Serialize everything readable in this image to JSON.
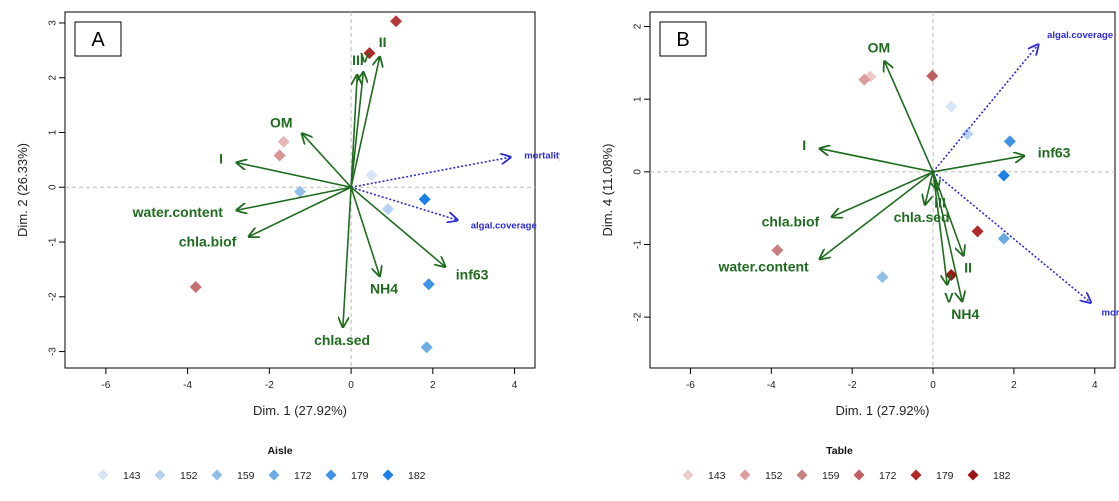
{
  "chart_data": [
    {
      "type": "scatter",
      "panel_label": "A",
      "xlabel": "Dim. 1 (27.92%)",
      "ylabel": "Dim. 2 (26.33%)",
      "xlim": [
        -7,
        4.5
      ],
      "ylim": [
        -3.3,
        3.2
      ],
      "xticks": [
        "-6",
        "-4",
        "-2",
        "0",
        "2",
        "4"
      ],
      "yticks": [
        "-3",
        "-2",
        "-1",
        "0",
        "1",
        "2",
        "3"
      ],
      "grid": false,
      "reference_lines": "dashed at x=0 and y=0",
      "points": [
        {
          "x": 0.5,
          "y": 0.22,
          "group": "143",
          "color": "#d6e6f7"
        },
        {
          "x": 0.9,
          "y": -0.4,
          "group": "152",
          "color": "#b5d3f0"
        },
        {
          "x": -1.25,
          "y": -0.08,
          "group": "159",
          "color": "#8fbfe9"
        },
        {
          "x": 1.85,
          "y": -2.92,
          "group": "172",
          "color": "#6aabe5"
        },
        {
          "x": 1.9,
          "y": -1.77,
          "group": "179",
          "color": "#3d92e6"
        },
        {
          "x": 1.8,
          "y": -0.22,
          "group": "182",
          "color": "#1b7fe6"
        }
      ],
      "extra_points": [
        {
          "x": -1.65,
          "y": 0.83,
          "color": "#e8b7b7"
        },
        {
          "x": -1.75,
          "y": 0.58,
          "color": "#d79595"
        },
        {
          "x": -3.8,
          "y": -1.82,
          "color": "#c27070"
        },
        {
          "x": 0.45,
          "y": 2.45,
          "color": "#b12a2a"
        },
        {
          "x": 1.1,
          "y": 3.03,
          "color": "#b23a3a"
        }
      ],
      "arrows": [
        {
          "label": "I",
          "x": -2.8,
          "y": 0.45
        },
        {
          "label": "OM",
          "x": -1.2,
          "y": 0.98
        },
        {
          "label": "water.content",
          "x": -2.8,
          "y": -0.42
        },
        {
          "label": "chla.biof",
          "x": -2.5,
          "y": -0.9
        },
        {
          "label": "III",
          "x": 0.15,
          "y": 2.05
        },
        {
          "label": "V",
          "x": 0.3,
          "y": 2.1
        },
        {
          "label": "II",
          "x": 0.7,
          "y": 2.38
        },
        {
          "label": "NH4",
          "x": 0.7,
          "y": -1.62
        },
        {
          "label": "inf63",
          "x": 2.3,
          "y": -1.45
        },
        {
          "label": "chla.sed",
          "x": -0.2,
          "y": -2.55
        }
      ],
      "supplementary_arrows": [
        {
          "label": "mortality",
          "x": 3.9,
          "y": 0.55
        },
        {
          "label": "algal.coverage",
          "x": 2.6,
          "y": -0.6
        }
      ],
      "legend": {
        "title": "Aisle",
        "entries": [
          {
            "label": "143",
            "color": "#d6e6f7"
          },
          {
            "label": "152",
            "color": "#b5d3f0"
          },
          {
            "label": "159",
            "color": "#8fbfe9"
          },
          {
            "label": "172",
            "color": "#6aabe5"
          },
          {
            "label": "179",
            "color": "#3d92e6"
          },
          {
            "label": "182",
            "color": "#1b7fe6"
          }
        ],
        "placement": "bottom"
      }
    },
    {
      "type": "scatter",
      "panel_label": "B",
      "xlabel": "Dim. 1 (27.92%)",
      "ylabel": "Dim. 4 (11.08%)",
      "xlim": [
        -7,
        4.5
      ],
      "ylim": [
        -2.7,
        2.2
      ],
      "xticks": [
        "-6",
        "-4",
        "-2",
        "0",
        "2",
        "4"
      ],
      "yticks": [
        "-2",
        "-1",
        "0",
        "1",
        "2"
      ],
      "grid": false,
      "reference_lines": "dashed at x=0 and y=0",
      "points": [
        {
          "x": -1.55,
          "y": 1.31,
          "group": "143",
          "color": "#edc9c9"
        },
        {
          "x": -1.7,
          "y": 1.27,
          "group": "152",
          "color": "#de9d9d"
        },
        {
          "x": -3.85,
          "y": -1.08,
          "group": "159",
          "color": "#c77f7f"
        },
        {
          "x": -0.02,
          "y": 1.32,
          "group": "172",
          "color": "#c05f5f"
        },
        {
          "x": 1.1,
          "y": -0.82,
          "group": "179",
          "color": "#b22a2a"
        },
        {
          "x": 0.45,
          "y": -1.42,
          "group": "182",
          "color": "#9c1515"
        }
      ],
      "extra_points": [
        {
          "x": 0.45,
          "y": 0.9,
          "color": "#d6e6f7"
        },
        {
          "x": 0.85,
          "y": 0.52,
          "color": "#b5d3f0"
        },
        {
          "x": -1.25,
          "y": -1.45,
          "color": "#8fbfe9"
        },
        {
          "x": 1.75,
          "y": -0.92,
          "color": "#6aabe5"
        },
        {
          "x": 1.9,
          "y": 0.42,
          "color": "#3d92e6"
        },
        {
          "x": 1.75,
          "y": -0.05,
          "color": "#1b7fe6"
        }
      ],
      "arrows": [
        {
          "label": "OM",
          "x": -1.2,
          "y": 1.52
        },
        {
          "label": "I",
          "x": -2.8,
          "y": 0.32
        },
        {
          "label": "chla.biof",
          "x": -2.5,
          "y": -0.62
        },
        {
          "label": "water.content",
          "x": -2.8,
          "y": -1.2
        },
        {
          "label": "chla.sed",
          "x": -0.2,
          "y": -0.45
        },
        {
          "label": "III",
          "x": 0.1,
          "y": -0.25
        },
        {
          "label": "II",
          "x": 0.75,
          "y": -1.15
        },
        {
          "label": "V",
          "x": 0.35,
          "y": -1.55
        },
        {
          "label": "NH4",
          "x": 0.72,
          "y": -1.78
        },
        {
          "label": "inf63",
          "x": 2.25,
          "y": 0.22
        }
      ],
      "supplementary_arrows": [
        {
          "label": "algal.coverage",
          "x": 2.6,
          "y": 1.75
        },
        {
          "label": "mortality",
          "x": 3.9,
          "y": -1.8
        }
      ],
      "legend": {
        "title": "Table",
        "entries": [
          {
            "label": "143",
            "color": "#edc9c9"
          },
          {
            "label": "152",
            "color": "#de9d9d"
          },
          {
            "label": "159",
            "color": "#c77f7f"
          },
          {
            "label": "172",
            "color": "#c05f5f"
          },
          {
            "label": "179",
            "color": "#b22a2a"
          },
          {
            "label": "182",
            "color": "#9c1515"
          }
        ],
        "placement": "bottom"
      }
    }
  ],
  "colors": {
    "variable_arrow": "#1f6b1f",
    "supplementary_arrow": "#2a2ad6",
    "reference_line": "#bbbbbb"
  }
}
